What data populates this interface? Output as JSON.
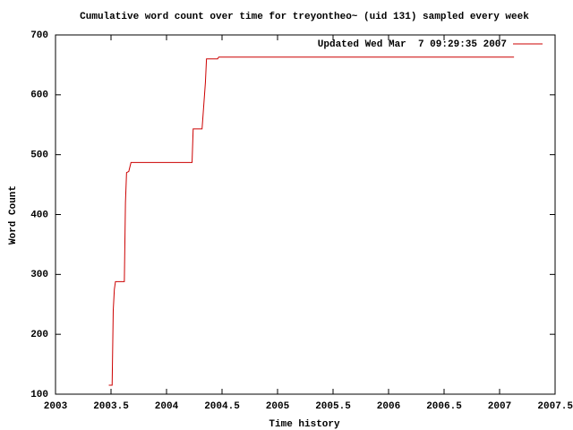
{
  "chart_data": {
    "type": "line",
    "title": "Cumulative word count over time for treyontheo~ (uid 131) sampled every week",
    "x_label": "Time history",
    "y_label": "Word Count",
    "xlim": [
      2003,
      2007.5
    ],
    "ylim": [
      100,
      700
    ],
    "xticks": [
      2003,
      2003.5,
      2004,
      2004.5,
      2005,
      2005.5,
      2006,
      2006.5,
      2007,
      2007.5
    ],
    "yticks": [
      100,
      200,
      300,
      400,
      500,
      600,
      700
    ],
    "legend": "top-right",
    "x": [
      2003.48,
      2003.51,
      2003.52,
      2003.53,
      2003.54,
      2003.62,
      2003.63,
      2003.64,
      2003.66,
      2003.68,
      2004.23,
      2004.24,
      2004.32,
      2004.35,
      2004.36,
      2004.46,
      2004.47,
      2007.13
    ],
    "series": [
      {
        "name": "Updated Wed Mar  7 09:29:35 2007",
        "color": "#cc0000",
        "values": [
          115,
          115,
          240,
          275,
          288,
          288,
          420,
          470,
          472,
          487,
          487,
          543,
          543,
          620,
          660,
          660,
          663,
          663
        ]
      }
    ]
  }
}
